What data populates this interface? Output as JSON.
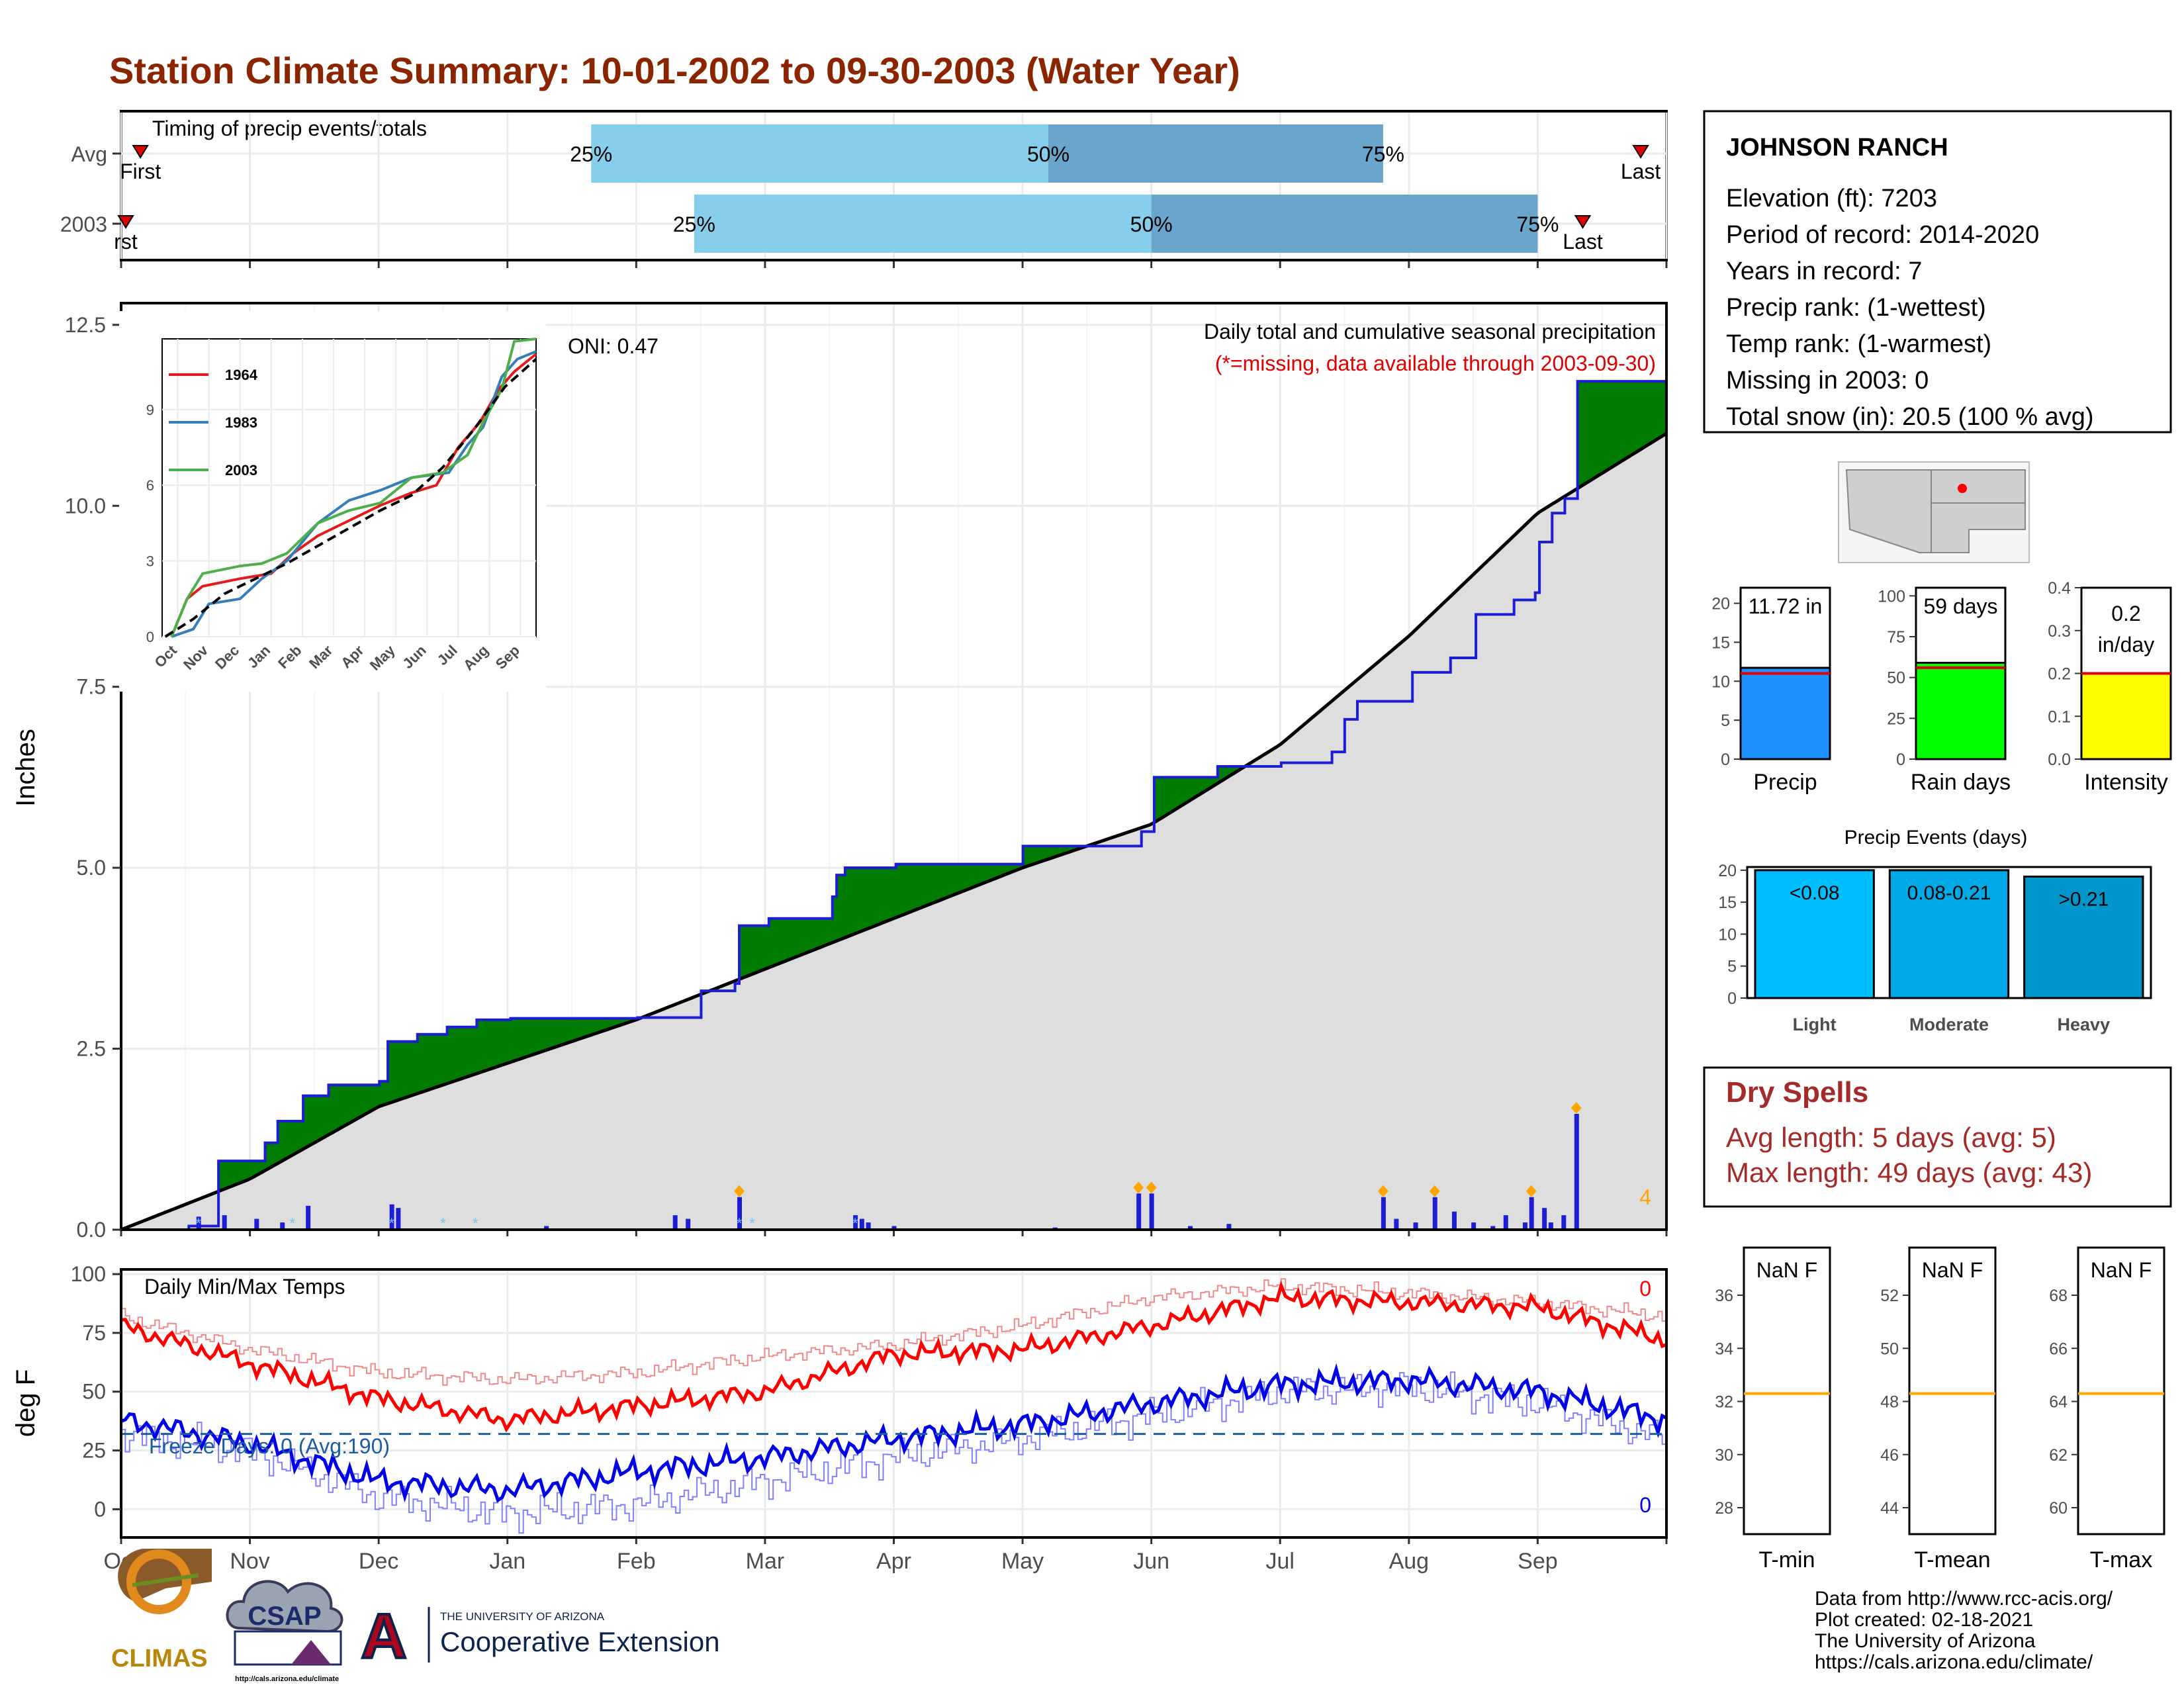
{
  "title": "Station Climate Summary: 10-01-2002 to 09-30-2003 (Water Year)",
  "colors": {
    "title": "#8b2500",
    "precip_blue": "#1d1dd6",
    "green_fill": "#007d00",
    "brown_fill": "#8b5a00",
    "avg_fill": "#dedede",
    "light_blue": "#87ceeb",
    "mid_blue": "#6aa5cc",
    "tmax": "#ff1a1a",
    "tmin": "#0000e6",
    "orange": "#ffa500"
  },
  "timing": {
    "title": "Timing of precip events/totals",
    "rows": [
      {
        "label": "Avg",
        "first_label": "First",
        "last_label": "Last",
        "first_month": 0.15,
        "q25": 3.65,
        "q50": 7.2,
        "q75": 9.8,
        "last_month": 11.8,
        "p25": "25%",
        "p50": "50%",
        "p75": "75%"
      },
      {
        "label": "2003",
        "first_label": "rst",
        "last_label": "Last",
        "first_month": 0.0,
        "q25": 4.45,
        "q50": 8.0,
        "q75": 11.0,
        "last_month": 11.35,
        "p25": "25%",
        "p50": "50%",
        "p75": "75%"
      }
    ]
  },
  "precip_panel": {
    "ylabel": "Inches",
    "yticks": [
      "0.0",
      "2.5",
      "5.0",
      "7.5",
      "10.0",
      "12.5"
    ],
    "ymax": 12.8,
    "oni": "ONI: 0.47",
    "caption": "Daily total and cumulative seasonal precipitation",
    "missing_note": "(*=missing, data available through 2003-09-30)",
    "count_label": "4"
  },
  "inset": {
    "legend": [
      "1964",
      "1983",
      "2003"
    ],
    "yticks": [
      "0",
      "3",
      "6",
      "9"
    ],
    "xticks": [
      "Oct",
      "Nov",
      "Dec",
      "Jan",
      "Feb",
      "Mar",
      "Apr",
      "May",
      "Jun",
      "Jul",
      "Aug",
      "Sep"
    ]
  },
  "temp_panel": {
    "ylabel": "deg F",
    "title": "Daily Min/Max Temps",
    "freeze_label": "Freeze Days: 0 (Avg:190)",
    "yticks": [
      "0",
      "25",
      "50",
      "75",
      "100"
    ],
    "max_count": "0",
    "min_count": "0"
  },
  "months": [
    "Oct",
    "Nov",
    "Dec",
    "Jan",
    "Feb",
    "Mar",
    "Apr",
    "May",
    "Jun",
    "Jul",
    "Aug",
    "Sep"
  ],
  "station": {
    "name": "JOHNSON RANCH",
    "elevation": "Elevation (ft): 7203",
    "period": "Period of record: 2014-2020",
    "years": "Years in record: 7",
    "precip_rank": "Precip rank:  (1-wettest)",
    "temp_rank": "Temp rank:  (1-warmest)",
    "missing": "Missing in 2003: 0",
    "snow": "Total snow (in): 20.5 (100 % avg)"
  },
  "bars": {
    "precip": {
      "label": "Precip",
      "value_label": "11.72 in",
      "value": 11.72,
      "avg": 11.0,
      "max": 22,
      "ticks": [
        "0",
        "5",
        "10",
        "15",
        "20"
      ]
    },
    "rain_days": {
      "label": "Rain days",
      "value_label": "59 days",
      "value": 59,
      "avg": 56,
      "max": 105,
      "ticks": [
        "0",
        "25",
        "50",
        "75",
        "100"
      ]
    },
    "intensity": {
      "label": "Intensity",
      "value_label_1": "0.2",
      "value_label_2": "in/day",
      "value": 0.2,
      "avg": 0.2,
      "max": 0.4,
      "ticks": [
        "0.0",
        "0.1",
        "0.2",
        "0.3",
        "0.4"
      ]
    }
  },
  "events": {
    "title": "Precip Events (days)",
    "ticks": [
      "0",
      "5",
      "10",
      "15",
      "20"
    ],
    "max": 20.5,
    "categories": [
      "Light",
      "Moderate",
      "Heavy"
    ],
    "labels": [
      "<0.08",
      "0.08-0.21",
      ">0.21"
    ],
    "values": [
      20,
      20,
      19
    ],
    "colors": [
      "#00bfff",
      "#00a9e6",
      "#0096cc"
    ]
  },
  "dry_spells": {
    "title": "Dry Spells",
    "avg": "Avg length: 5 days (avg: 5)",
    "max": "Max length: 49 days (avg: 43)"
  },
  "temp_boxes": [
    {
      "label": "T-min",
      "value": "NaN F",
      "ticks": [
        "28",
        "30",
        "32",
        "34",
        "36"
      ],
      "line_tick_value": 32.3
    },
    {
      "label": "T-mean",
      "value": "NaN F",
      "ticks": [
        "44",
        "46",
        "48",
        "50",
        "52"
      ],
      "line_tick_value": 48.3
    },
    {
      "label": "T-max",
      "value": "NaN F",
      "ticks": [
        "60",
        "62",
        "64",
        "66",
        "68"
      ],
      "line_tick_value": 64.3
    }
  ],
  "footer": {
    "source": "Data from http://www.rcc-acis.org/",
    "created": "Plot created: 02-18-2021",
    "org": "The University of Arizona",
    "url": "https://cals.arizona.edu/climate/"
  },
  "logos": {
    "climas": "CLIMAS",
    "csap": "CSAP",
    "csap_url": "http://cals.arizona.edu/climate",
    "ua_small": "THE UNIVERSITY OF ARIZONA",
    "ua_big": "Cooperative Extension",
    "ua_letter": "A"
  },
  "chart_data": {
    "type": "area",
    "title": "Daily total and cumulative seasonal precipitation",
    "ylabel": "Inches",
    "ylim": [
      0,
      12.8
    ],
    "x_unit": "month index from Oct 1",
    "series": [
      {
        "name": "2003",
        "x": [
          0,
          0.5,
          0.75,
          1.1,
          1.2,
          1.4,
          1.6,
          2.0,
          2.05,
          2.3,
          2.5,
          2.75,
          3.0,
          4.0,
          4.5,
          4.75,
          4.8,
          5.0,
          5.5,
          5.55,
          5.6,
          5.9,
          6.0,
          7.0,
          7.9,
          8.0,
          8.5,
          9.0,
          9.4,
          9.5,
          9.6,
          10.0,
          10.3,
          10.5,
          10.8,
          10.95,
          11.0,
          11.1,
          11.2,
          11.3,
          12.0
        ],
        "y": [
          0,
          0.05,
          0.95,
          1.2,
          1.5,
          1.85,
          2.0,
          2.05,
          2.6,
          2.7,
          2.8,
          2.9,
          2.92,
          2.93,
          3.3,
          3.4,
          4.2,
          4.3,
          4.6,
          4.9,
          5.0,
          5.0,
          5.05,
          5.3,
          5.5,
          6.25,
          6.4,
          6.45,
          6.6,
          7.05,
          7.3,
          7.7,
          7.9,
          8.5,
          8.7,
          8.8,
          9.5,
          9.9,
          10.1,
          11.72,
          11.72
        ]
      },
      {
        "name": "Avg",
        "x": [
          0,
          1,
          2,
          3,
          4,
          5,
          6,
          7,
          8,
          9,
          10,
          11,
          12
        ],
        "y": [
          0,
          0.7,
          1.7,
          2.3,
          2.9,
          3.6,
          4.3,
          5.0,
          5.6,
          6.7,
          8.2,
          9.9,
          11.0
        ]
      }
    ],
    "daily_precip": {
      "x": [
        0.6,
        0.8,
        1.05,
        1.25,
        1.45,
        2.1,
        2.15,
        3.3,
        4.3,
        4.4,
        4.8,
        5.7,
        5.75,
        5.8,
        6.0,
        7.25,
        7.9,
        8.0,
        8.3,
        8.6,
        9.8,
        9.9,
        10.05,
        10.2,
        10.35,
        10.5,
        10.65,
        10.75,
        10.9,
        10.95,
        11.05,
        11.1,
        11.2,
        11.3
      ],
      "y": [
        0.18,
        0.2,
        0.15,
        0.1,
        0.33,
        0.35,
        0.3,
        0.05,
        0.2,
        0.15,
        0.45,
        0.2,
        0.15,
        0.1,
        0.05,
        0.03,
        0.5,
        0.5,
        0.05,
        0.08,
        0.45,
        0.15,
        0.1,
        0.45,
        0.25,
        0.1,
        0.05,
        0.2,
        0.1,
        0.45,
        0.3,
        0.1,
        0.2,
        1.6
      ]
    },
    "temperature": {
      "ylim": [
        -12,
        102
      ],
      "tmax_x": [
        0,
        1,
        2,
        3,
        4,
        5,
        6,
        7,
        8,
        9,
        10,
        11,
        12
      ],
      "tmax_y": [
        78,
        62,
        47,
        38,
        44,
        50,
        66,
        68,
        78,
        90,
        88,
        86,
        72
      ],
      "tmin_x": [
        0,
        1,
        2,
        3,
        4,
        5,
        6,
        7,
        8,
        9,
        10,
        11,
        12
      ],
      "tmin_y": [
        38,
        28,
        12,
        8,
        16,
        22,
        30,
        36,
        45,
        53,
        55,
        50,
        38
      ],
      "avg_tmax_y": [
        82,
        68,
        58,
        55,
        58,
        65,
        70,
        78,
        90,
        95,
        92,
        88,
        82
      ],
      "avg_tmin_y": [
        32,
        25,
        5,
        -2,
        2,
        12,
        22,
        30,
        40,
        50,
        52,
        45,
        30
      ],
      "freeze_line": 32
    }
  }
}
